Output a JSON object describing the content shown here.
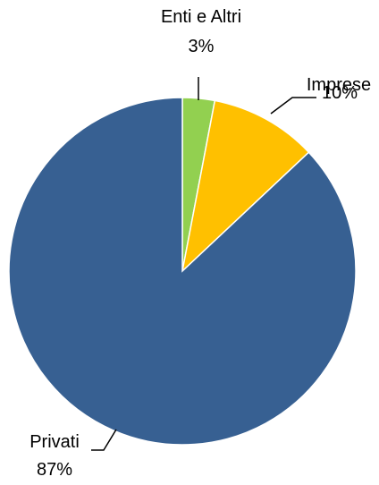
{
  "chart_data": {
    "type": "pie",
    "start_angle": "12 o'clock",
    "direction": "clockwise",
    "slices": [
      {
        "label": "Enti e Altri",
        "value": 3,
        "value_label": "3%",
        "color": "#92D050"
      },
      {
        "label": "Imprese",
        "value": 10,
        "value_label": "10%",
        "color": "#FFC000"
      },
      {
        "label": "Privati",
        "value": 87,
        "value_label": "87%",
        "color": "#376092"
      }
    ]
  }
}
